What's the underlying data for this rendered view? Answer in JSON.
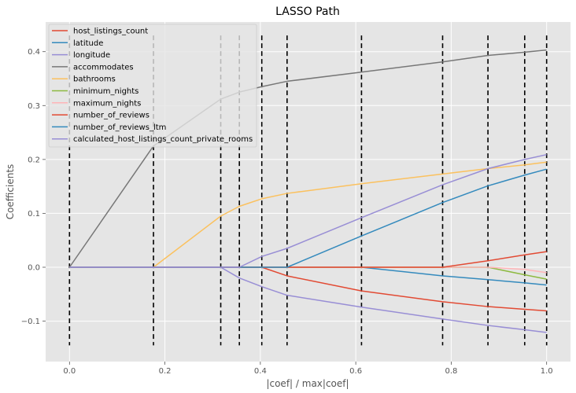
{
  "chart_data": {
    "type": "line",
    "title": "LASSO Path",
    "xlabel": "|coef| / max|coef|",
    "ylabel": "Coefficients",
    "xlim": [
      -0.05,
      1.05
    ],
    "ylim": [
      -0.175,
      0.455
    ],
    "xticks": [
      0.0,
      0.2,
      0.4,
      0.6,
      0.8,
      1.0
    ],
    "xtick_labels": [
      "0.0",
      "0.2",
      "0.4",
      "0.6",
      "0.8",
      "1.0"
    ],
    "yticks": [
      -0.1,
      0.0,
      0.1,
      0.2,
      0.3,
      0.4
    ],
    "ytick_labels": [
      "−0.1",
      "0.0",
      "0.1",
      "0.2",
      "0.3",
      "0.4"
    ],
    "grid": true,
    "legend_position": "top-left",
    "vlines": [
      {
        "x": 0.0,
        "ymin": -0.145,
        "ymax": 0.43,
        "color": "#000000"
      },
      {
        "x": 0.176,
        "ymin": -0.145,
        "ymax": 0.43,
        "color": "#000000"
      },
      {
        "x": 0.317,
        "ymin": -0.145,
        "ymax": 0.43,
        "color": "#000000"
      },
      {
        "x": 0.356,
        "ymin": -0.145,
        "ymax": 0.43,
        "color": "#000000"
      },
      {
        "x": 0.403,
        "ymin": -0.145,
        "ymax": 0.43,
        "color": "#000000"
      },
      {
        "x": 0.456,
        "ymin": -0.145,
        "ymax": 0.43,
        "color": "#000000"
      },
      {
        "x": 0.612,
        "ymin": -0.145,
        "ymax": 0.43,
        "color": "#000000"
      },
      {
        "x": 0.782,
        "ymin": -0.145,
        "ymax": 0.43,
        "color": "#000000"
      },
      {
        "x": 0.877,
        "ymin": -0.145,
        "ymax": 0.43,
        "color": "#000000"
      },
      {
        "x": 0.954,
        "ymin": -0.145,
        "ymax": 0.43,
        "color": "#000000"
      },
      {
        "x": 1.0,
        "ymin": -0.145,
        "ymax": 0.43,
        "color": "#000000"
      }
    ],
    "series": [
      {
        "name": "host_listings_count",
        "color": "#E24A33",
        "points": [
          [
            0,
            0
          ],
          [
            0.176,
            0
          ],
          [
            0.317,
            0
          ],
          [
            0.356,
            0
          ],
          [
            0.403,
            0
          ],
          [
            0.456,
            -0.016
          ],
          [
            0.612,
            -0.044
          ],
          [
            0.782,
            -0.064
          ],
          [
            0.877,
            -0.073
          ],
          [
            0.954,
            -0.078
          ],
          [
            1.0,
            -0.081
          ]
        ]
      },
      {
        "name": "latitude",
        "color": "#348ABD",
        "points": [
          [
            0,
            0
          ],
          [
            0.176,
            0
          ],
          [
            0.317,
            0
          ],
          [
            0.356,
            0
          ],
          [
            0.403,
            0
          ],
          [
            0.456,
            0
          ],
          [
            0.612,
            0
          ],
          [
            0.782,
            -0.016
          ],
          [
            0.877,
            -0.023
          ],
          [
            0.954,
            -0.029
          ],
          [
            1.0,
            -0.033
          ]
        ]
      },
      {
        "name": "longitude",
        "color": "#988ED5",
        "points": [
          [
            0,
            0
          ],
          [
            0.176,
            0
          ],
          [
            0.317,
            0
          ],
          [
            0.356,
            -0.02
          ],
          [
            0.403,
            -0.036
          ],
          [
            0.456,
            -0.052
          ],
          [
            0.612,
            -0.074
          ],
          [
            0.782,
            -0.096
          ],
          [
            0.877,
            -0.108
          ],
          [
            0.954,
            -0.116
          ],
          [
            1.0,
            -0.121
          ]
        ]
      },
      {
        "name": "accommodates",
        "color": "#777777",
        "points": [
          [
            0,
            0
          ],
          [
            0.176,
            0.225
          ],
          [
            0.317,
            0.312
          ],
          [
            0.356,
            0.325
          ],
          [
            0.403,
            0.335
          ],
          [
            0.456,
            0.345
          ],
          [
            0.612,
            0.362
          ],
          [
            0.782,
            0.381
          ],
          [
            0.877,
            0.393
          ],
          [
            0.954,
            0.399
          ],
          [
            1.0,
            0.403
          ]
        ]
      },
      {
        "name": "bathrooms",
        "color": "#FBC15E",
        "points": [
          [
            0,
            0
          ],
          [
            0.176,
            0
          ],
          [
            0.317,
            0.095
          ],
          [
            0.356,
            0.113
          ],
          [
            0.403,
            0.127
          ],
          [
            0.456,
            0.137
          ],
          [
            0.612,
            0.155
          ],
          [
            0.782,
            0.173
          ],
          [
            0.877,
            0.183
          ],
          [
            0.954,
            0.19
          ],
          [
            1.0,
            0.195
          ]
        ]
      },
      {
        "name": "minimum_nights",
        "color": "#8EBA42",
        "points": [
          [
            0,
            0
          ],
          [
            0.176,
            0
          ],
          [
            0.317,
            0
          ],
          [
            0.356,
            0
          ],
          [
            0.403,
            0
          ],
          [
            0.456,
            0
          ],
          [
            0.612,
            0
          ],
          [
            0.782,
            0
          ],
          [
            0.877,
            0
          ],
          [
            0.954,
            -0.014
          ],
          [
            1.0,
            -0.022
          ]
        ]
      },
      {
        "name": "maximum_nights",
        "color": "#FFB5B8",
        "points": [
          [
            0,
            0
          ],
          [
            0.176,
            0
          ],
          [
            0.317,
            0
          ],
          [
            0.356,
            0
          ],
          [
            0.403,
            0
          ],
          [
            0.456,
            0
          ],
          [
            0.612,
            0
          ],
          [
            0.782,
            0
          ],
          [
            0.877,
            0
          ],
          [
            0.954,
            -0.004
          ],
          [
            1.0,
            -0.01
          ]
        ]
      },
      {
        "name": "number_of_reviews",
        "color": "#E24A33",
        "points": [
          [
            0,
            0
          ],
          [
            0.176,
            0
          ],
          [
            0.317,
            0
          ],
          [
            0.356,
            0
          ],
          [
            0.403,
            0
          ],
          [
            0.456,
            0
          ],
          [
            0.612,
            0
          ],
          [
            0.782,
            0
          ],
          [
            0.877,
            0.012
          ],
          [
            0.954,
            0.023
          ],
          [
            1.0,
            0.029
          ]
        ]
      },
      {
        "name": "number_of_reviews_ltm",
        "color": "#348ABD",
        "points": [
          [
            0,
            0
          ],
          [
            0.176,
            0
          ],
          [
            0.317,
            0
          ],
          [
            0.356,
            0
          ],
          [
            0.403,
            0
          ],
          [
            0.456,
            0
          ],
          [
            0.612,
            0.058
          ],
          [
            0.782,
            0.12
          ],
          [
            0.877,
            0.151
          ],
          [
            0.954,
            0.171
          ],
          [
            1.0,
            0.182
          ]
        ]
      },
      {
        "name": "calculated_host_listings_count_private_rooms",
        "color": "#988ED5",
        "points": [
          [
            0,
            0
          ],
          [
            0.176,
            0
          ],
          [
            0.317,
            0
          ],
          [
            0.356,
            0
          ],
          [
            0.403,
            0.02
          ],
          [
            0.456,
            0.035
          ],
          [
            0.612,
            0.092
          ],
          [
            0.782,
            0.153
          ],
          [
            0.877,
            0.183
          ],
          [
            0.954,
            0.2
          ],
          [
            1.0,
            0.209
          ]
        ]
      }
    ]
  }
}
